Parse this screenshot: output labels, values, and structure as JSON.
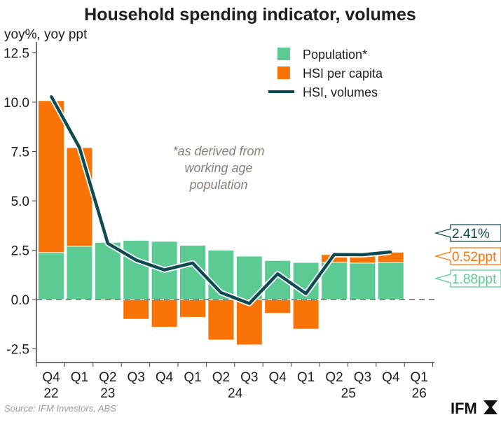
{
  "chart_data": {
    "type": "bar",
    "stacked": true,
    "title": "Household spending indicator, volumes",
    "ylabel": "yoy%, yoy ppt",
    "ylim": [
      -3.5,
      12.5
    ],
    "yticks": [
      "12.5",
      "10.0",
      "7.5",
      "5.0",
      "2.5",
      "0.0",
      "-2.5"
    ],
    "ytick_values": [
      12.5,
      10,
      7.5,
      5,
      2.5,
      0,
      -2.5
    ],
    "categories": [
      "Q4 22",
      "Q1 23",
      "Q2 23",
      "Q3 23",
      "Q4 23",
      "Q1 24",
      "Q2 24",
      "Q3 24",
      "Q4 24",
      "Q1 25",
      "Q2 25",
      "Q3 25",
      "Q4 25",
      "Q1 26"
    ],
    "xtick_quarters": [
      "Q4",
      "Q1",
      "Q2",
      "Q3",
      "Q4",
      "Q1",
      "Q2",
      "Q3",
      "Q4",
      "Q1",
      "Q2",
      "Q3",
      "Q4",
      "Q1"
    ],
    "xtick_years": [
      {
        "label": "22",
        "index": 0
      },
      {
        "label": "23",
        "index": 2
      },
      {
        "label": "24",
        "index": 6.5
      },
      {
        "label": "25",
        "index": 10.5
      },
      {
        "label": "26",
        "index": 13
      }
    ],
    "series": [
      {
        "name": "Population*",
        "kind": "bar",
        "color": "#5ccb93",
        "values": [
          2.38,
          2.7,
          2.9,
          3.0,
          2.95,
          2.75,
          2.5,
          2.2,
          1.98,
          1.88,
          1.88,
          1.85,
          1.88,
          null
        ]
      },
      {
        "name": "HSI per capita",
        "kind": "bar",
        "color": "#f97306",
        "values": [
          7.7,
          5.0,
          -0.05,
          -1.0,
          -1.4,
          -0.9,
          -2.05,
          -2.3,
          -0.7,
          -1.5,
          0.4,
          0.4,
          0.52,
          null
        ]
      },
      {
        "name": "HSI, volumes",
        "kind": "line",
        "color": "#0d4a52",
        "values": [
          10.3,
          7.7,
          2.85,
          2.0,
          1.5,
          1.85,
          0.35,
          -0.2,
          1.3,
          0.3,
          2.28,
          2.27,
          2.41,
          null
        ]
      }
    ],
    "annotation": [
      "*as derived from",
      "working age",
      "population"
    ],
    "callouts": [
      {
        "text": "2.41%",
        "color": "#0d4a52",
        "value": 2.41
      },
      {
        "text": "0.52ppt",
        "color": "#f97306",
        "value": 0.52
      },
      {
        "text": "1.88ppt",
        "color": "#5ccb93",
        "value": 1.88
      }
    ],
    "legend_position": "top-right",
    "zero_line": "dashed"
  },
  "footer": {
    "source": "Source: IFM Investors, ABS",
    "logo": "IFM"
  }
}
